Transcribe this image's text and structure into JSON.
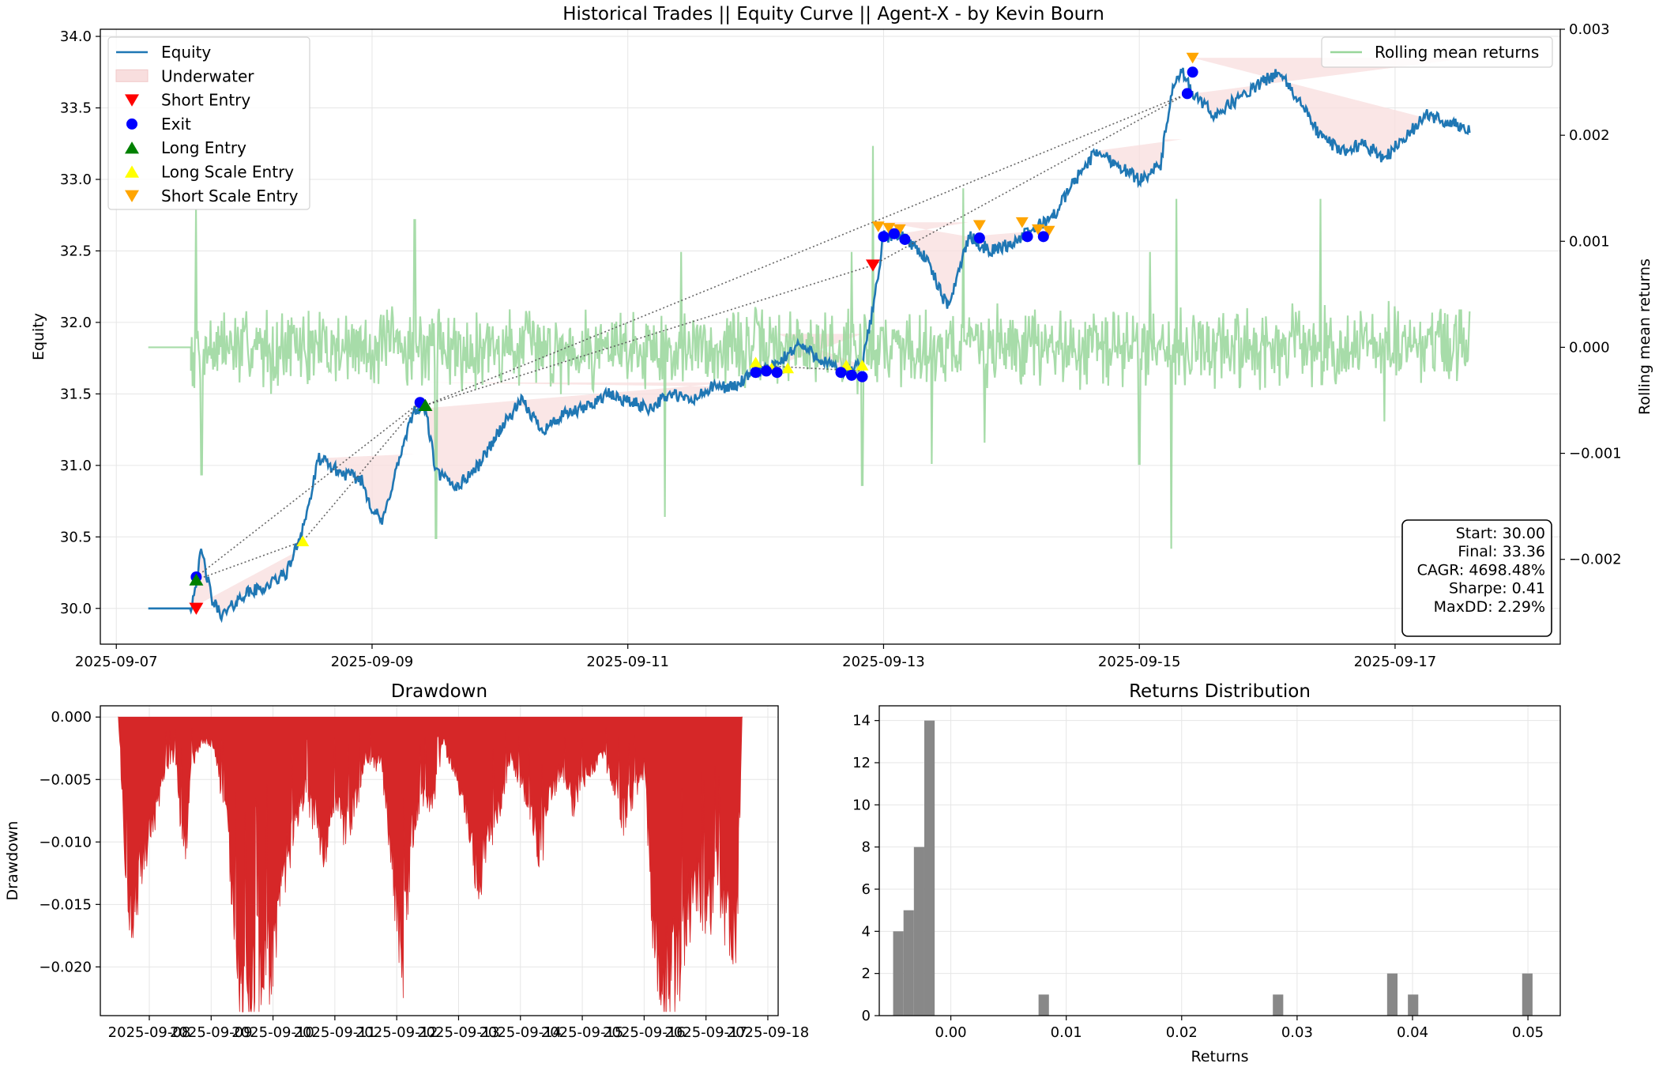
{
  "figure": {
    "title": "Historical Trades || Equity Curve || Agent-X - by Kevin Bourn"
  },
  "colors": {
    "equity": "#1f77b4",
    "rolling": "#98d69a",
    "underwater": "#f8dede",
    "short_entry": "#ff0000",
    "exit": "#0000ff",
    "long_entry": "#008000",
    "long_scale": "#ffff00",
    "short_scale": "#ffa500",
    "drawdown": "#d62728",
    "histogram": "#888888",
    "trade_link": "#555555"
  },
  "chart_data": [
    {
      "type": "line",
      "name": "equity-curve",
      "ylabel": "Equity",
      "y2label": "Rolling mean returns",
      "ylim": [
        29.75,
        34.05
      ],
      "y2lim": [
        -0.0028,
        0.003
      ],
      "xlim": [
        "2025-09-06T21:00",
        "2025-09-18T07:00"
      ],
      "x_ticks": [
        "2025-09-07",
        "2025-09-09",
        "2025-09-11",
        "2025-09-13",
        "2025-09-15",
        "2025-09-17"
      ],
      "y_ticks": [
        "30.0",
        "30.5",
        "31.0",
        "31.5",
        "32.0",
        "32.5",
        "33.0",
        "33.5",
        "34.0"
      ],
      "y2_ticks": [
        "−0.002",
        "−0.001",
        "0.000",
        "0.001",
        "0.002",
        "0.003"
      ],
      "grid": true,
      "legend_left": [
        "Equity",
        "Underwater",
        "Short Entry",
        "Exit",
        "Long Entry",
        "Long Scale Entry",
        "Short Scale Entry"
      ],
      "legend_right": [
        "Rolling mean returns"
      ],
      "legend_placement": {
        "left": "upper-left",
        "right": "upper-right"
      },
      "equity_anchors": [
        [
          "2025-09-07T06:00",
          30.0
        ],
        [
          "2025-09-07T12:00",
          30.0
        ],
        [
          "2025-09-07T14:00",
          30.0
        ],
        [
          "2025-09-07T16:00",
          30.4
        ],
        [
          "2025-09-07T18:00",
          30.05
        ],
        [
          "2025-09-07T20:00",
          29.95
        ],
        [
          "2025-09-08T00:00",
          30.1
        ],
        [
          "2025-09-08T04:00",
          30.15
        ],
        [
          "2025-09-08T08:00",
          30.25
        ],
        [
          "2025-09-08T10:00",
          30.45
        ],
        [
          "2025-09-08T12:00",
          30.7
        ],
        [
          "2025-09-08T14:00",
          31.05
        ],
        [
          "2025-09-08T18:00",
          30.95
        ],
        [
          "2025-09-08T22:00",
          30.9
        ],
        [
          "2025-09-09T00:00",
          30.7
        ],
        [
          "2025-09-09T02:00",
          30.6
        ],
        [
          "2025-09-09T04:00",
          30.9
        ],
        [
          "2025-09-09T08:00",
          31.4
        ],
        [
          "2025-09-09T10:00",
          31.4
        ],
        [
          "2025-09-09T12:00",
          30.95
        ],
        [
          "2025-09-09T16:00",
          30.85
        ],
        [
          "2025-09-09T20:00",
          31.0
        ],
        [
          "2025-09-10T00:00",
          31.25
        ],
        [
          "2025-09-10T04:00",
          31.45
        ],
        [
          "2025-09-10T08:00",
          31.25
        ],
        [
          "2025-09-10T12:00",
          31.35
        ],
        [
          "2025-09-10T16:00",
          31.4
        ],
        [
          "2025-09-10T20:00",
          31.5
        ],
        [
          "2025-09-11T00:00",
          31.45
        ],
        [
          "2025-09-11T04:00",
          31.4
        ],
        [
          "2025-09-11T08:00",
          31.5
        ],
        [
          "2025-09-11T12:00",
          31.45
        ],
        [
          "2025-09-11T16:00",
          31.55
        ],
        [
          "2025-09-11T20:00",
          31.55
        ],
        [
          "2025-09-12T00:00",
          31.65
        ],
        [
          "2025-09-12T04:00",
          31.7
        ],
        [
          "2025-09-12T08:00",
          31.85
        ],
        [
          "2025-09-12T12:00",
          31.75
        ],
        [
          "2025-09-12T16:00",
          31.65
        ],
        [
          "2025-09-12T20:00",
          31.7
        ],
        [
          "2025-09-12T22:00",
          32.1
        ],
        [
          "2025-09-13T00:00",
          32.6
        ],
        [
          "2025-09-13T04:00",
          32.6
        ],
        [
          "2025-09-13T08:00",
          32.45
        ],
        [
          "2025-09-13T12:00",
          32.1
        ],
        [
          "2025-09-13T16:00",
          32.6
        ],
        [
          "2025-09-13T20:00",
          32.5
        ],
        [
          "2025-09-14T00:00",
          32.55
        ],
        [
          "2025-09-14T04:00",
          32.65
        ],
        [
          "2025-09-14T08:00",
          32.75
        ],
        [
          "2025-09-14T12:00",
          33.0
        ],
        [
          "2025-09-14T16:00",
          33.2
        ],
        [
          "2025-09-14T20:00",
          33.1
        ],
        [
          "2025-09-15T00:00",
          33.0
        ],
        [
          "2025-09-15T04:00",
          33.1
        ],
        [
          "2025-09-15T06:00",
          33.6
        ],
        [
          "2025-09-15T08:00",
          33.75
        ],
        [
          "2025-09-15T10:00",
          33.6
        ],
        [
          "2025-09-15T14:00",
          33.45
        ],
        [
          "2025-09-15T18:00",
          33.55
        ],
        [
          "2025-09-15T22:00",
          33.65
        ],
        [
          "2025-09-16T02:00",
          33.75
        ],
        [
          "2025-09-16T06:00",
          33.55
        ],
        [
          "2025-09-16T10:00",
          33.3
        ],
        [
          "2025-09-16T14:00",
          33.2
        ],
        [
          "2025-09-16T18:00",
          33.25
        ],
        [
          "2025-09-16T22:00",
          33.15
        ],
        [
          "2025-09-17T02:00",
          33.3
        ],
        [
          "2025-09-17T06:00",
          33.45
        ],
        [
          "2025-09-17T10:00",
          33.4
        ],
        [
          "2025-09-17T14:00",
          33.35
        ]
      ],
      "underwater_regions": [
        [
          "2025-09-07T14:00",
          "2025-09-08T10:00",
          30.4
        ],
        [
          "2025-09-08T14:00",
          "2025-09-09T08:00",
          31.08
        ],
        [
          "2025-09-09T10:00",
          "2025-09-11T20:00",
          31.58
        ],
        [
          "2025-09-12T04:00",
          "2025-09-12T20:00",
          31.92
        ],
        [
          "2025-09-13T00:00",
          "2025-09-13T16:00",
          32.7
        ],
        [
          "2025-09-13T16:00",
          "2025-09-14T08:00",
          32.65
        ],
        [
          "2025-09-14T16:00",
          "2025-09-15T08:00",
          33.28
        ],
        [
          "2025-09-15T10:00",
          "2025-09-17T14:00",
          33.85
        ]
      ],
      "markers": {
        "short_entry": [
          [
            "2025-09-07T15:00",
            30.0
          ],
          [
            "2025-09-12T22:00",
            32.4
          ]
        ],
        "exit": [
          [
            "2025-09-07T15:00",
            30.22
          ],
          [
            "2025-09-09T09:00",
            31.44
          ],
          [
            "2025-09-12T00:00",
            31.65
          ],
          [
            "2025-09-12T02:00",
            31.66
          ],
          [
            "2025-09-12T04:00",
            31.65
          ],
          [
            "2025-09-12T16:00",
            31.65
          ],
          [
            "2025-09-12T18:00",
            31.63
          ],
          [
            "2025-09-12T20:00",
            31.62
          ],
          [
            "2025-09-13T00:00",
            32.6
          ],
          [
            "2025-09-13T02:00",
            32.62
          ],
          [
            "2025-09-13T04:00",
            32.58
          ],
          [
            "2025-09-13T18:00",
            32.59
          ],
          [
            "2025-09-14T03:00",
            32.6
          ],
          [
            "2025-09-14T06:00",
            32.6
          ],
          [
            "2025-09-15T09:00",
            33.6
          ],
          [
            "2025-09-15T10:00",
            33.75
          ]
        ],
        "long_entry": [
          [
            "2025-09-07T15:00",
            30.2
          ],
          [
            "2025-09-09T10:00",
            31.42
          ]
        ],
        "long_scale": [
          [
            "2025-09-08T11:00",
            30.47
          ],
          [
            "2025-09-12T00:00",
            31.72
          ],
          [
            "2025-09-12T03:00",
            31.68
          ],
          [
            "2025-09-12T06:00",
            31.68
          ],
          [
            "2025-09-12T17:00",
            31.7
          ],
          [
            "2025-09-12T20:00",
            31.7
          ]
        ],
        "short_scale": [
          [
            "2025-09-12T23:00",
            32.67
          ],
          [
            "2025-09-13T01:00",
            32.66
          ],
          [
            "2025-09-13T03:00",
            32.65
          ],
          [
            "2025-09-13T18:00",
            32.68
          ],
          [
            "2025-09-14T02:00",
            32.7
          ],
          [
            "2025-09-14T05:00",
            32.65
          ],
          [
            "2025-09-14T07:00",
            32.64
          ],
          [
            "2025-09-15T10:00",
            33.85
          ]
        ]
      },
      "trade_links": [
        [
          [
            "2025-09-07T15:00",
            30.22
          ],
          [
            "2025-09-09T09:00",
            31.44
          ]
        ],
        [
          [
            "2025-09-07T15:00",
            30.2
          ],
          [
            "2025-09-08T11:00",
            30.47
          ],
          [
            "2025-09-09T09:00",
            31.44
          ]
        ],
        [
          [
            "2025-09-09T10:00",
            31.42
          ],
          [
            "2025-09-15T09:00",
            33.6
          ]
        ],
        [
          [
            "2025-09-09T10:00",
            31.42
          ],
          [
            "2025-09-12T22:00",
            32.4
          ],
          [
            "2025-09-15T09:00",
            33.6
          ]
        ],
        [
          [
            "2025-09-12T00:00",
            31.7
          ],
          [
            "2025-09-12T20:00",
            31.66
          ]
        ]
      ],
      "rolling_mean_returns": {
        "flat_start": [
          "2025-09-07T06:00",
          "2025-09-07T14:00",
          0.0
        ],
        "range_start": "2025-09-07T14:00",
        "range_end": "2025-09-17T14:00",
        "typical_amplitude": 0.0003,
        "spikes": [
          [
            "2025-09-07T15:00",
            0.0013
          ],
          [
            "2025-09-07T16:00",
            -0.0012
          ],
          [
            "2025-09-09T08:00",
            0.0012
          ],
          [
            "2025-09-09T12:00",
            -0.0018
          ],
          [
            "2025-09-11T07:00",
            -0.0016
          ],
          [
            "2025-09-11T10:00",
            0.0009
          ],
          [
            "2025-09-12T18:00",
            0.0009
          ],
          [
            "2025-09-12T20:00",
            -0.0013
          ],
          [
            "2025-09-12T22:00",
            0.0019
          ],
          [
            "2025-09-13T09:00",
            -0.0011
          ],
          [
            "2025-09-13T15:00",
            0.0015
          ],
          [
            "2025-09-13T19:00",
            -0.0009
          ],
          [
            "2025-09-15T00:00",
            -0.0011
          ],
          [
            "2025-09-15T02:00",
            0.0009
          ],
          [
            "2025-09-15T06:00",
            -0.0019
          ],
          [
            "2025-09-15T07:00",
            0.0014
          ],
          [
            "2025-09-16T10:00",
            0.0014
          ],
          [
            "2025-09-16T22:00",
            -0.0007
          ]
        ]
      },
      "stats": [
        "Start: 30.00",
        "Final: 33.36",
        "CAGR: 4698.48%",
        "Sharpe: 0.41",
        "MaxDD: 2.29%"
      ]
    },
    {
      "type": "area",
      "title": "Drawdown",
      "ylabel": "Drawdown",
      "ylim": [
        -0.0239,
        0.0009
      ],
      "xlim": [
        "2025-09-07T05:00",
        "2025-09-18T04:00"
      ],
      "x_ticks": [
        "2025-09-08",
        "2025-09-09",
        "2025-09-10",
        "2025-09-11",
        "2025-09-12",
        "2025-09-13",
        "2025-09-14",
        "2025-09-15",
        "2025-09-16",
        "2025-09-17",
        "2025-09-18"
      ],
      "y_ticks": [
        "−0.020",
        "−0.015",
        "−0.010",
        "−0.005",
        "0.000"
      ],
      "grid": true,
      "profile": [
        [
          "2025-09-07T12:00",
          0.0
        ],
        [
          "2025-09-07T14:00",
          -0.008
        ],
        [
          "2025-09-07T16:00",
          -0.016
        ],
        [
          "2025-09-07T20:00",
          -0.013
        ],
        [
          "2025-09-08T02:00",
          -0.008
        ],
        [
          "2025-09-08T06:00",
          -0.004
        ],
        [
          "2025-09-08T10:00",
          -0.003
        ],
        [
          "2025-09-08T14:00",
          -0.012
        ],
        [
          "2025-09-08T16:00",
          -0.004
        ],
        [
          "2025-09-08T20:00",
          -0.002
        ],
        [
          "2025-09-09T00:00",
          -0.002
        ],
        [
          "2025-09-09T06:00",
          -0.008
        ],
        [
          "2025-09-09T10:00",
          -0.02
        ],
        [
          "2025-09-09T12:00",
          -0.0225
        ],
        [
          "2025-09-09T18:00",
          -0.021
        ],
        [
          "2025-09-10T00:00",
          -0.019
        ],
        [
          "2025-09-10T04:00",
          -0.013
        ],
        [
          "2025-09-10T08:00",
          -0.009
        ],
        [
          "2025-09-10T12:00",
          -0.006
        ],
        [
          "2025-09-10T16:00",
          -0.008
        ],
        [
          "2025-09-10T20:00",
          -0.011
        ],
        [
          "2025-09-11T00:00",
          -0.006
        ],
        [
          "2025-09-11T04:00",
          -0.009
        ],
        [
          "2025-09-11T08:00",
          -0.007
        ],
        [
          "2025-09-11T12:00",
          -0.003
        ],
        [
          "2025-09-11T18:00",
          -0.004
        ],
        [
          "2025-09-12T00:00",
          -0.015
        ],
        [
          "2025-09-12T02:00",
          -0.021
        ],
        [
          "2025-09-12T06:00",
          -0.009
        ],
        [
          "2025-09-12T10:00",
          -0.006
        ],
        [
          "2025-09-12T14:00",
          -0.007
        ],
        [
          "2025-09-12T18:00",
          -0.002
        ],
        [
          "2025-09-13T00:00",
          -0.005
        ],
        [
          "2025-09-13T04:00",
          -0.009
        ],
        [
          "2025-09-13T08:00",
          -0.013
        ],
        [
          "2025-09-13T12:00",
          -0.01
        ],
        [
          "2025-09-13T16:00",
          -0.007
        ],
        [
          "2025-09-13T20:00",
          -0.003
        ],
        [
          "2025-09-14T00:00",
          -0.005
        ],
        [
          "2025-09-14T04:00",
          -0.008
        ],
        [
          "2025-09-14T08:00",
          -0.011
        ],
        [
          "2025-09-14T12:00",
          -0.006
        ],
        [
          "2025-09-14T16:00",
          -0.004
        ],
        [
          "2025-09-14T20:00",
          -0.007
        ],
        [
          "2025-09-15T00:00",
          -0.005
        ],
        [
          "2025-09-15T04:00",
          -0.004
        ],
        [
          "2025-09-15T08:00",
          -0.003
        ],
        [
          "2025-09-15T12:00",
          -0.005
        ],
        [
          "2025-09-15T16:00",
          -0.008
        ],
        [
          "2025-09-15T20:00",
          -0.006
        ],
        [
          "2025-09-16T00:00",
          -0.004
        ],
        [
          "2025-09-16T04:00",
          -0.018
        ],
        [
          "2025-09-16T08:00",
          -0.022
        ],
        [
          "2025-09-16T12:00",
          -0.021
        ],
        [
          "2025-09-16T16:00",
          -0.017
        ],
        [
          "2025-09-16T20:00",
          -0.013
        ],
        [
          "2025-09-17T00:00",
          -0.017
        ],
        [
          "2025-09-17T04:00",
          -0.012
        ],
        [
          "2025-09-17T08:00",
          -0.016
        ],
        [
          "2025-09-17T12:00",
          -0.017
        ],
        [
          "2025-09-17T14:00",
          -0.0
        ]
      ]
    },
    {
      "type": "bar",
      "title": "Returns Distribution",
      "xlabel": "Returns",
      "xlim": [
        -0.0062,
        0.0528
      ],
      "ylim": [
        0,
        14.7
      ],
      "x_ticks": [
        "0.00",
        "0.01",
        "0.02",
        "0.03",
        "0.04",
        "0.05"
      ],
      "y_ticks": [
        "0",
        "2",
        "4",
        "6",
        "8",
        "10",
        "12",
        "14"
      ],
      "grid": true,
      "bin_width": 0.0009,
      "bins": [
        [
          -0.005,
          4
        ],
        [
          -0.0041,
          5
        ],
        [
          -0.0032,
          8
        ],
        [
          -0.0023,
          14
        ],
        [
          0.0076,
          1
        ],
        [
          0.0279,
          1
        ],
        [
          0.0378,
          2
        ],
        [
          0.0396,
          1
        ],
        [
          0.0495,
          2
        ]
      ]
    }
  ]
}
